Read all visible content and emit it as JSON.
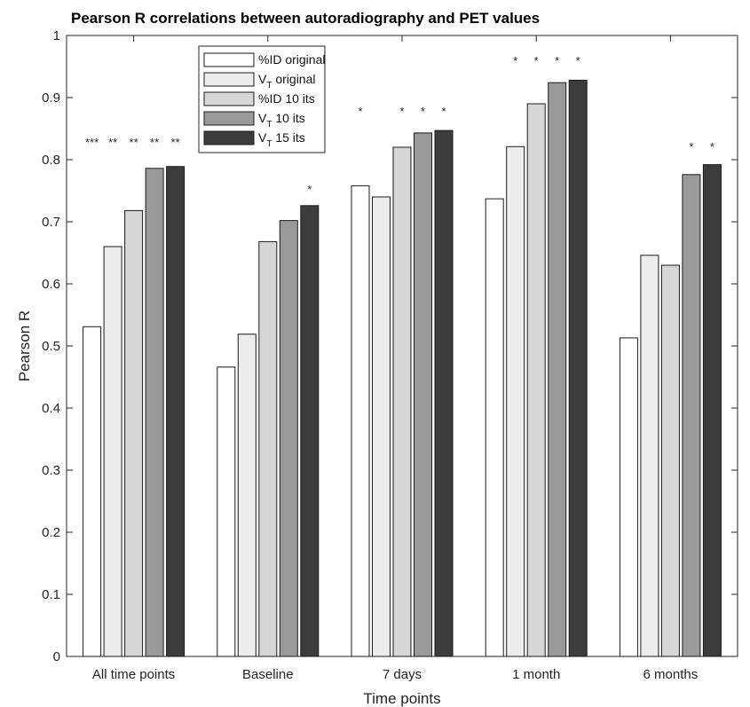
{
  "chart_data": {
    "type": "bar",
    "title": "Pearson R correlations between autoradiography and PET values",
    "xlabel": "Time points",
    "ylabel": "Pearson R",
    "ylim": [
      0,
      1
    ],
    "yticks": [
      "0",
      "0.1",
      "0.2",
      "0.3",
      "0.4",
      "0.5",
      "0.6",
      "0.7",
      "0.8",
      "0.9",
      "1"
    ],
    "categories": [
      "All time points",
      "Baseline",
      "7 days",
      "1 month",
      "6 months"
    ],
    "legend_position": "top-left",
    "grid": false,
    "series": [
      {
        "name": "%ID original",
        "main": "%ID original",
        "sub": "",
        "suffix": "",
        "color": "#ffffff",
        "values": [
          0.531,
          0.466,
          0.758,
          0.737,
          0.513
        ],
        "significance": [
          "***",
          "",
          "*",
          "",
          ""
        ]
      },
      {
        "name": "V_T original",
        "main": "V",
        "sub": "T",
        "suffix": " original",
        "color": "#ececec",
        "values": [
          0.66,
          0.519,
          0.74,
          0.821,
          0.646
        ],
        "significance": [
          "**",
          "",
          "",
          "*",
          ""
        ]
      },
      {
        "name": "%ID 10 its",
        "main": "%ID 10 its",
        "sub": "",
        "suffix": "",
        "color": "#d6d6d6",
        "values": [
          0.718,
          0.668,
          0.82,
          0.89,
          0.63
        ],
        "significance": [
          "**",
          "",
          "*",
          "*",
          ""
        ]
      },
      {
        "name": "V_T 10 its",
        "main": "V",
        "sub": "T",
        "suffix": " 10 its",
        "color": "#9a9a9a",
        "values": [
          0.786,
          0.702,
          0.843,
          0.924,
          0.776
        ],
        "significance": [
          "**",
          "",
          "*",
          "*",
          "*"
        ]
      },
      {
        "name": "V_T 15 its",
        "main": "V",
        "sub": "T",
        "suffix": " 15 its",
        "color": "#3c3c3c",
        "values": [
          0.789,
          0.726,
          0.847,
          0.928,
          0.792
        ],
        "significance": [
          "**",
          "*",
          "*",
          "*",
          "*"
        ]
      }
    ]
  }
}
